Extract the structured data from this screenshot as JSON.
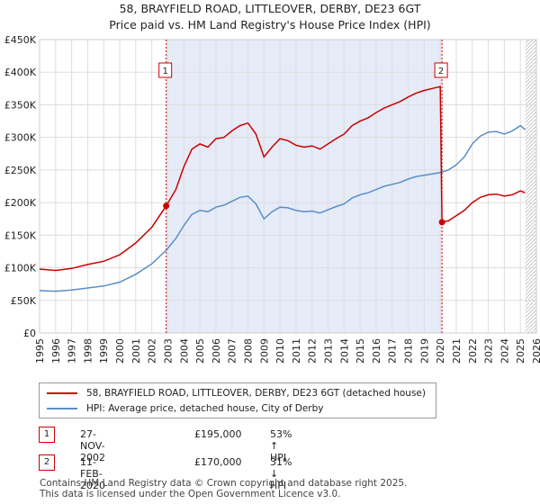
{
  "header": {
    "title": "58, BRAYFIELD ROAD, LITTLEOVER, DERBY, DE23 6GT",
    "subtitle": "Price paid vs. HM Land Registry's House Price Index (HPI)"
  },
  "colors": {
    "price_line": "#cc0000",
    "hpi_line": "#5b8ec8",
    "shade": "#e6ebf8",
    "marker_border": "#cc0000",
    "grid": "#dddddd"
  },
  "chart_data": {
    "type": "line",
    "title": "58, BRAYFIELD ROAD, LITTLEOVER, DERBY, DE23 6GT",
    "xlabel": "",
    "ylabel": "",
    "xlim": [
      1995,
      2026
    ],
    "ylim": [
      0,
      450000
    ],
    "x_ticks": [
      "1995",
      "1996",
      "1997",
      "1998",
      "1999",
      "2000",
      "2001",
      "2002",
      "2003",
      "2004",
      "2005",
      "2006",
      "2007",
      "2008",
      "2009",
      "2010",
      "2011",
      "2012",
      "2013",
      "2014",
      "2015",
      "2016",
      "2017",
      "2018",
      "2019",
      "2020",
      "2021",
      "2022",
      "2023",
      "2024",
      "2025",
      "2026"
    ],
    "y_ticks": [
      {
        "value": 0,
        "label": "£0"
      },
      {
        "value": 50000,
        "label": "£50K"
      },
      {
        "value": 100000,
        "label": "£100K"
      },
      {
        "value": 150000,
        "label": "£150K"
      },
      {
        "value": 200000,
        "label": "£200K"
      },
      {
        "value": 250000,
        "label": "£250K"
      },
      {
        "value": 300000,
        "label": "£300K"
      },
      {
        "value": 350000,
        "label": "£350K"
      },
      {
        "value": 400000,
        "label": "£400K"
      },
      {
        "value": 450000,
        "label": "£450K"
      }
    ],
    "grid": true,
    "shaded_range": [
      2002.9,
      2020.11
    ],
    "projection_start": 2025.3,
    "series": [
      {
        "name": "58, BRAYFIELD ROAD, LITTLEOVER, DERBY, DE23 6GT (detached house)",
        "color": "#cc0000",
        "points": [
          [
            1995.0,
            98000
          ],
          [
            1996.0,
            96000
          ],
          [
            1997.0,
            99000
          ],
          [
            1998.0,
            105000
          ],
          [
            1999.0,
            110000
          ],
          [
            2000.0,
            120000
          ],
          [
            2001.0,
            138000
          ],
          [
            2002.0,
            162000
          ],
          [
            2002.9,
            195000
          ],
          [
            2003.5,
            220000
          ],
          [
            2004.0,
            255000
          ],
          [
            2004.5,
            282000
          ],
          [
            2005.0,
            290000
          ],
          [
            2005.5,
            285000
          ],
          [
            2006.0,
            298000
          ],
          [
            2006.5,
            300000
          ],
          [
            2007.0,
            310000
          ],
          [
            2007.5,
            318000
          ],
          [
            2008.0,
            322000
          ],
          [
            2008.5,
            305000
          ],
          [
            2009.0,
            270000
          ],
          [
            2009.5,
            285000
          ],
          [
            2010.0,
            298000
          ],
          [
            2010.5,
            295000
          ],
          [
            2011.0,
            288000
          ],
          [
            2011.5,
            285000
          ],
          [
            2012.0,
            287000
          ],
          [
            2012.5,
            282000
          ],
          [
            2013.0,
            290000
          ],
          [
            2013.5,
            298000
          ],
          [
            2014.0,
            305000
          ],
          [
            2014.5,
            318000
          ],
          [
            2015.0,
            325000
          ],
          [
            2015.5,
            330000
          ],
          [
            2016.0,
            338000
          ],
          [
            2016.5,
            345000
          ],
          [
            2017.0,
            350000
          ],
          [
            2017.5,
            355000
          ],
          [
            2018.0,
            362000
          ],
          [
            2018.5,
            368000
          ],
          [
            2019.0,
            372000
          ],
          [
            2019.5,
            375000
          ],
          [
            2020.0,
            378000
          ],
          [
            2020.11,
            170000
          ],
          [
            2020.5,
            172000
          ],
          [
            2021.0,
            180000
          ],
          [
            2021.5,
            188000
          ],
          [
            2022.0,
            200000
          ],
          [
            2022.5,
            208000
          ],
          [
            2023.0,
            212000
          ],
          [
            2023.5,
            213000
          ],
          [
            2024.0,
            210000
          ],
          [
            2024.5,
            212000
          ],
          [
            2025.0,
            218000
          ],
          [
            2025.3,
            215000
          ]
        ]
      },
      {
        "name": "HPI: Average price, detached house, City of Derby",
        "color": "#5b8ec8",
        "points": [
          [
            1995.0,
            65000
          ],
          [
            1996.0,
            64000
          ],
          [
            1997.0,
            66000
          ],
          [
            1998.0,
            69000
          ],
          [
            1999.0,
            72000
          ],
          [
            2000.0,
            78000
          ],
          [
            2001.0,
            90000
          ],
          [
            2002.0,
            106000
          ],
          [
            2002.9,
            127000
          ],
          [
            2003.5,
            145000
          ],
          [
            2004.0,
            165000
          ],
          [
            2004.5,
            182000
          ],
          [
            2005.0,
            188000
          ],
          [
            2005.5,
            186000
          ],
          [
            2006.0,
            193000
          ],
          [
            2006.5,
            196000
          ],
          [
            2007.0,
            202000
          ],
          [
            2007.5,
            208000
          ],
          [
            2008.0,
            210000
          ],
          [
            2008.5,
            198000
          ],
          [
            2009.0,
            175000
          ],
          [
            2009.5,
            186000
          ],
          [
            2010.0,
            193000
          ],
          [
            2010.5,
            192000
          ],
          [
            2011.0,
            188000
          ],
          [
            2011.5,
            186000
          ],
          [
            2012.0,
            187000
          ],
          [
            2012.5,
            184000
          ],
          [
            2013.0,
            189000
          ],
          [
            2013.5,
            194000
          ],
          [
            2014.0,
            198000
          ],
          [
            2014.5,
            207000
          ],
          [
            2015.0,
            212000
          ],
          [
            2015.5,
            215000
          ],
          [
            2016.0,
            220000
          ],
          [
            2016.5,
            225000
          ],
          [
            2017.0,
            228000
          ],
          [
            2017.5,
            231000
          ],
          [
            2018.0,
            236000
          ],
          [
            2018.5,
            240000
          ],
          [
            2019.0,
            242000
          ],
          [
            2019.5,
            244000
          ],
          [
            2020.0,
            246000
          ],
          [
            2020.5,
            250000
          ],
          [
            2021.0,
            258000
          ],
          [
            2021.5,
            270000
          ],
          [
            2022.0,
            290000
          ],
          [
            2022.5,
            302000
          ],
          [
            2023.0,
            308000
          ],
          [
            2023.5,
            309000
          ],
          [
            2024.0,
            305000
          ],
          [
            2024.5,
            310000
          ],
          [
            2025.0,
            318000
          ],
          [
            2025.3,
            312000
          ]
        ]
      }
    ],
    "annotations": [
      {
        "id": "1",
        "x": 2002.9,
        "y": 195000
      },
      {
        "id": "2",
        "x": 2020.11,
        "y": 170000
      }
    ]
  },
  "legend": {
    "price_label": "58, BRAYFIELD ROAD, LITTLEOVER, DERBY, DE23 6GT (detached house)",
    "hpi_label": "HPI: Average price, detached house, City of Derby"
  },
  "transactions": [
    {
      "num": "1",
      "date": "27-NOV-2002",
      "price": "£195,000",
      "hpi": "53% ↑ HPI"
    },
    {
      "num": "2",
      "date": "11-FEB-2020",
      "price": "£170,000",
      "hpi": "31% ↓ HPI"
    }
  ],
  "footer": {
    "line1": "Contains HM Land Registry data © Crown copyright and database right 2025.",
    "line2": "This data is licensed under the Open Government Licence v3.0."
  }
}
